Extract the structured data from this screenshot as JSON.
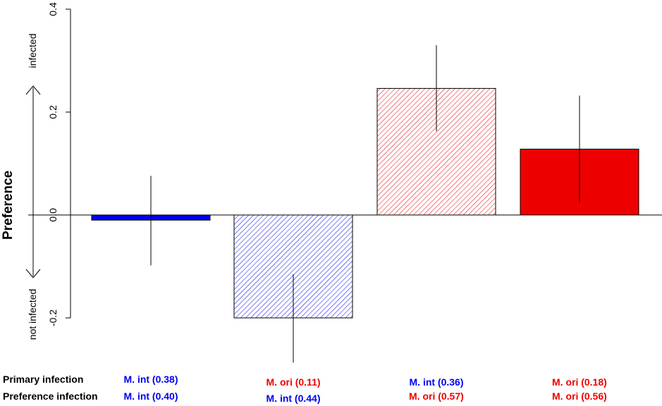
{
  "chart_data": {
    "type": "bar",
    "ylabel": "Preference",
    "ylim": [
      -0.28,
      0.4
    ],
    "yticks": [
      -0.2,
      0.0,
      0.2,
      0.4
    ],
    "ytick_labels": [
      "-0.2",
      "0.0",
      "0.2",
      "0.4"
    ],
    "direction_labels": {
      "up": "infected",
      "down": "not infected"
    },
    "bars": [
      {
        "value": -0.01,
        "err_low": -0.098,
        "err_high": 0.076,
        "fill": "solid",
        "color": "#0000ee"
      },
      {
        "value": -0.2,
        "err_low": -0.287,
        "err_high": -0.115,
        "fill": "hatched",
        "color": "#0000ee"
      },
      {
        "value": 0.246,
        "err_low": 0.163,
        "err_high": 0.33,
        "fill": "hatched",
        "color": "#ee0000"
      },
      {
        "value": 0.128,
        "err_low": 0.024,
        "err_high": 0.232,
        "fill": "solid",
        "color": "#ee0000"
      }
    ],
    "row_labels": {
      "primary": "Primary infection",
      "preference": "Preference infection"
    },
    "primary_labels": [
      {
        "text": "M. int (0.38)",
        "color": "blue"
      },
      {
        "text": "M. ori (0.11)",
        "color": "red"
      },
      {
        "text": "M. int (0.36)",
        "color": "blue"
      },
      {
        "text": "M. ori (0.18)",
        "color": "red"
      }
    ],
    "preference_labels": [
      {
        "text": "M. int (0.40)",
        "color": "blue"
      },
      {
        "text": "M. int (0.44)",
        "color": "blue"
      },
      {
        "text": "M. ori (0.57)",
        "color": "red"
      },
      {
        "text": "M. ori (0.56)",
        "color": "red"
      }
    ]
  }
}
